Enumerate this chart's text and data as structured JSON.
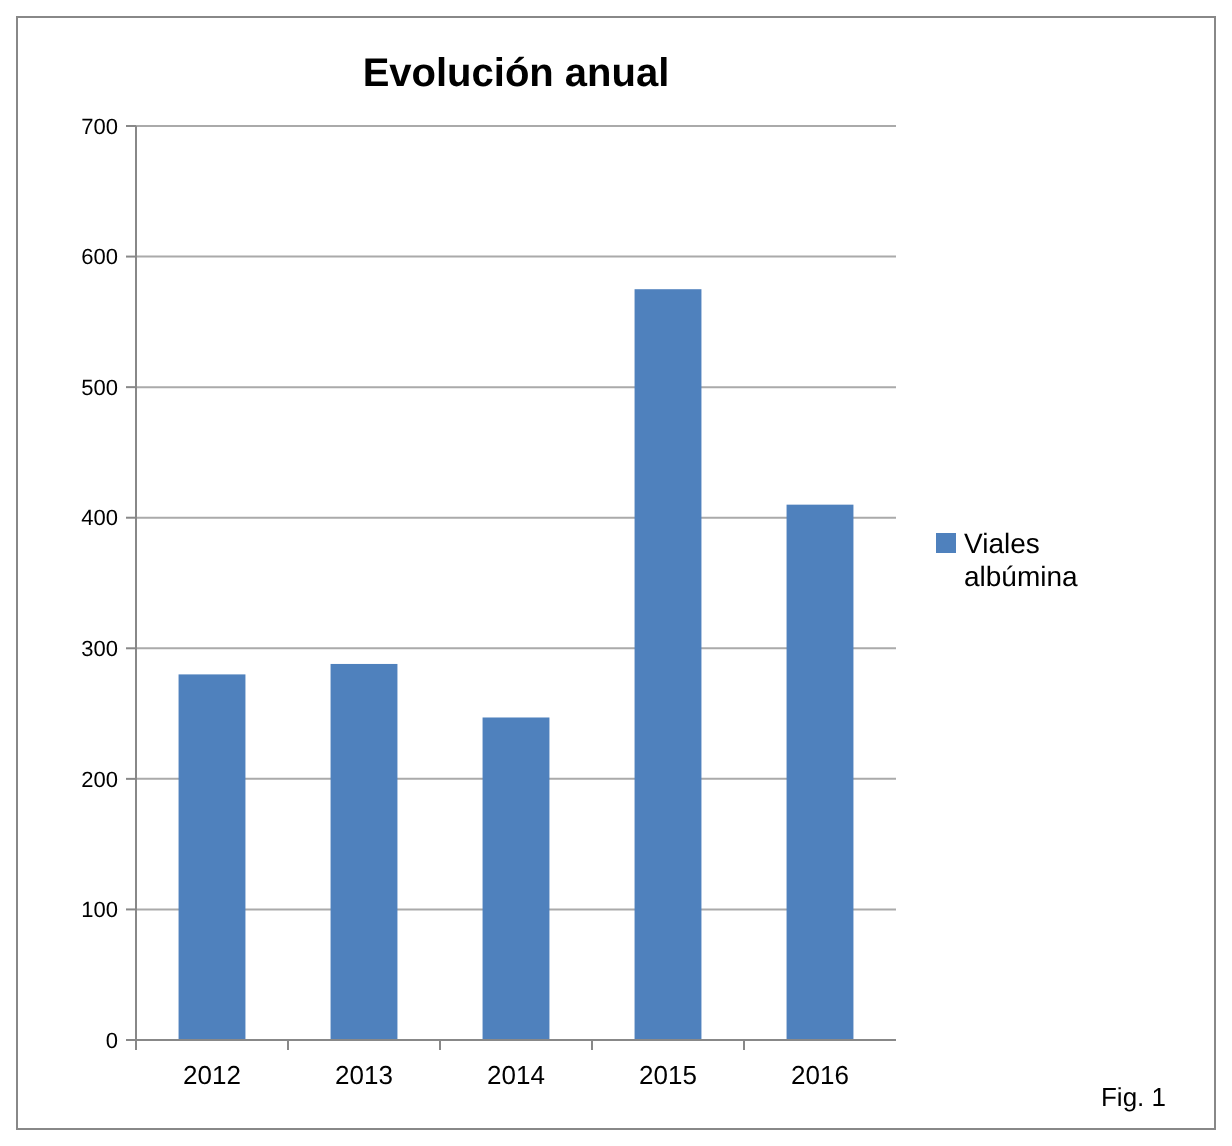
{
  "chart_data": {
    "type": "bar",
    "title": "Evolución anual",
    "categories": [
      "2012",
      "2013",
      "2014",
      "2015",
      "2016"
    ],
    "series": [
      {
        "name": "Viales albúmina",
        "color": "#4f81bd",
        "values": [
          280,
          288,
          247,
          575,
          410
        ]
      }
    ],
    "ylim": [
      0,
      700
    ],
    "yticks": [
      0,
      100,
      200,
      300,
      400,
      500,
      600,
      700
    ],
    "grid": "y",
    "legend": "right",
    "annotations": [
      "Fig. 1"
    ]
  }
}
